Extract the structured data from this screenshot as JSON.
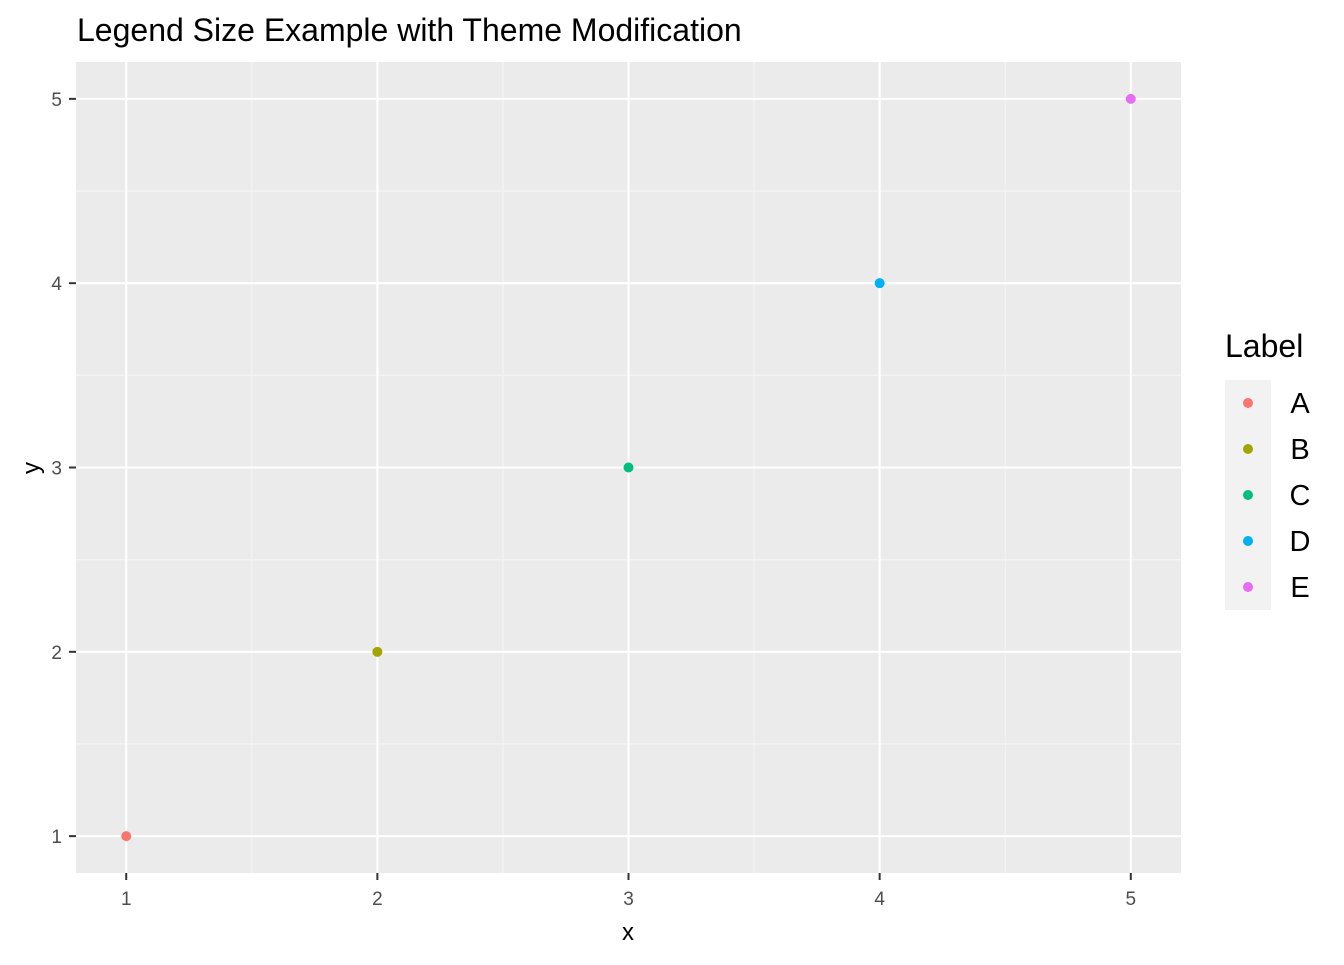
{
  "chart_data": {
    "type": "scatter",
    "title": "Legend Size Example with Theme Modification",
    "xlabel": "x",
    "ylabel": "y",
    "xlim": [
      0.8,
      5.2
    ],
    "ylim": [
      0.8,
      5.2
    ],
    "x_ticks": [
      1,
      2,
      3,
      4,
      5
    ],
    "y_ticks": [
      1,
      2,
      3,
      4,
      5
    ],
    "grid": true,
    "legend_title": "Label",
    "legend_position": "right",
    "points": [
      {
        "x": 1,
        "y": 1,
        "label": "A",
        "color": "#F8766D"
      },
      {
        "x": 2,
        "y": 2,
        "label": "B",
        "color": "#A3A500"
      },
      {
        "x": 3,
        "y": 3,
        "label": "C",
        "color": "#00BF7D"
      },
      {
        "x": 4,
        "y": 4,
        "label": "D",
        "color": "#00B0F6"
      },
      {
        "x": 5,
        "y": 5,
        "label": "E",
        "color": "#E76BF3"
      }
    ],
    "legend": [
      {
        "label": "A",
        "color": "#F8766D"
      },
      {
        "label": "B",
        "color": "#A3A500"
      },
      {
        "label": "C",
        "color": "#00BF7D"
      },
      {
        "label": "D",
        "color": "#00B0F6"
      },
      {
        "label": "E",
        "color": "#E76BF3"
      }
    ],
    "colors": {
      "panel_background": "#EBEBEB",
      "grid_major": "#FFFFFF",
      "grid_minor": "#F5F5F5",
      "legend_key_background": "#F2F2F2"
    }
  }
}
